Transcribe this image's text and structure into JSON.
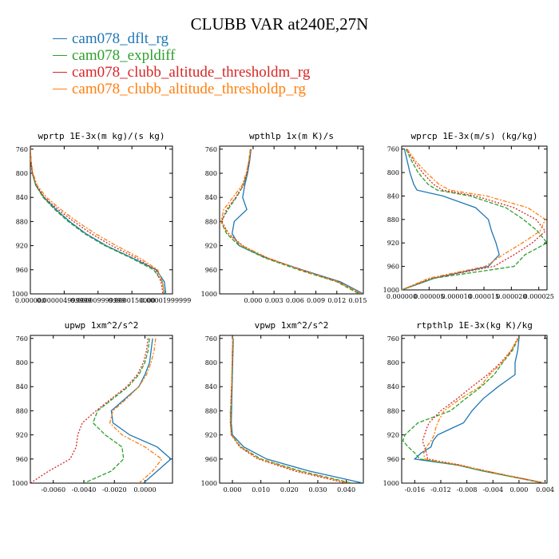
{
  "title": "CLUBB VAR at240E,27N",
  "legend": [
    {
      "name": "cam078_dflt_rg",
      "color": "#1f77b4"
    },
    {
      "name": "cam078_expldiff",
      "color": "#2ca02c"
    },
    {
      "name": "cam078_clubb_altitude_thresholdm_rg",
      "color": "#d62728"
    },
    {
      "name": "cam078_clubb_altitude_thresholdp_rg",
      "color": "#ff7f0e"
    }
  ],
  "chart_data": [
    {
      "type": "line",
      "title": "wprtp  1E-3x(m kg)/(s kg)",
      "xlim": [
        0,
        2.1e-05
      ],
      "ylim": [
        1000,
        755
      ],
      "xticks": [
        0,
        5e-06,
        1e-05,
        1.5e-05,
        2e-05
      ],
      "xtick_labels": [
        "0.000000",
        "0.000004999999",
        "0.000009999999",
        "0.0000150000",
        "0.00001999999"
      ],
      "yticks": [
        760,
        800,
        840,
        880,
        920,
        960,
        1000
      ],
      "y": [
        760,
        780,
        800,
        820,
        840,
        860,
        880,
        900,
        920,
        940,
        960,
        980,
        1000
      ],
      "series": [
        {
          "name": "cam078_dflt_rg",
          "x": [
            0,
            1e-07,
            3e-07,
            8e-07,
            2e-06,
            3.8e-06,
            5.8e-06,
            8.2e-06,
            1.12e-05,
            1.5e-05,
            1.86e-05,
            1.98e-05,
            2e-05
          ]
        },
        {
          "name": "cam078_expldiff",
          "x": [
            0,
            1e-07,
            3e-07,
            8e-07,
            1.9e-06,
            3.6e-06,
            5.6e-06,
            8e-06,
            1.1e-05,
            1.48e-05,
            1.82e-05,
            1.95e-05,
            1.98e-05
          ]
        },
        {
          "name": "cam078_clubb_altitude_thresholdm_rg",
          "x": [
            0,
            1e-07,
            3e-07,
            9e-07,
            2.1e-06,
            4.1e-06,
            6.4e-06,
            9e-06,
            1.2e-05,
            1.56e-05,
            1.85e-05,
            1.93e-05,
            1.96e-05
          ]
        },
        {
          "name": "cam078_clubb_altitude_thresholdp_rg",
          "x": [
            0,
            1e-07,
            4e-07,
            1e-06,
            2.4e-06,
            4.5e-06,
            6.9e-06,
            9.6e-06,
            1.27e-05,
            1.61e-05,
            1.88e-05,
            1.95e-05,
            1.98e-05
          ]
        }
      ]
    },
    {
      "type": "line",
      "title": "wpthlp  1x(m K)/s",
      "xlim": [
        -0.0048,
        0.0158
      ],
      "ylim": [
        1000,
        755
      ],
      "xticks": [
        0,
        0.003,
        0.006,
        0.009,
        0.012,
        0.015
      ],
      "xtick_labels": [
        "0.000",
        "0.003",
        "0.006",
        "0.009",
        "0.012",
        "0.015"
      ],
      "yticks": [
        760,
        800,
        840,
        880,
        920,
        960,
        1000
      ],
      "y": [
        760,
        780,
        800,
        820,
        840,
        860,
        880,
        900,
        920,
        940,
        960,
        980,
        1000
      ],
      "series": [
        {
          "name": "cam078_dflt_rg",
          "x": [
            -0.0003,
            -0.0005,
            -0.0008,
            -0.0012,
            -0.0015,
            -0.0009,
            -0.0027,
            -0.003,
            -0.002,
            0.0018,
            0.007,
            0.0125,
            0.0158
          ]
        },
        {
          "name": "cam078_expldiff",
          "x": [
            -0.0004,
            -0.0006,
            -0.0009,
            -0.0014,
            -0.0024,
            -0.0036,
            -0.0046,
            -0.0038,
            -0.002,
            0.0016,
            0.0065,
            0.012,
            0.0152
          ]
        },
        {
          "name": "cam078_clubb_altitude_thresholdm_rg",
          "x": [
            -0.0003,
            -0.0006,
            -0.0009,
            -0.0014,
            -0.0025,
            -0.0038,
            -0.0045,
            -0.0035,
            -0.0015,
            0.002,
            0.0068,
            0.0122,
            0.0155
          ]
        },
        {
          "name": "cam078_clubb_altitude_thresholdp_rg",
          "x": [
            -0.0004,
            -0.0006,
            -0.001,
            -0.0016,
            -0.0029,
            -0.0042,
            -0.0046,
            -0.0036,
            -0.0016,
            0.002,
            0.0068,
            0.0122,
            0.0156
          ]
        }
      ]
    },
    {
      "type": "line",
      "title": "wprcp  1E-3x(m/s) (kg/kg)",
      "xlim": [
        0,
        2.65e-05
      ],
      "ylim": [
        1000,
        755
      ],
      "xticks": [
        0,
        5e-06,
        1e-05,
        1.5e-05,
        2e-05,
        2.5e-05
      ],
      "xtick_labels": [
        "0.000000",
        "0.000005",
        "0.000010",
        "0.000015",
        "0.000020",
        "0.000025"
      ],
      "yticks": [
        760,
        800,
        840,
        880,
        920,
        960,
        1000
      ],
      "y": [
        760,
        780,
        800,
        820,
        830,
        840,
        860,
        880,
        900,
        920,
        940,
        960,
        980,
        1000
      ],
      "series": [
        {
          "name": "cam078_dflt_rg",
          "x": [
            5e-07,
            1e-06,
            1.5e-06,
            2.2e-06,
            2.8e-06,
            7.5e-06,
            1.35e-05,
            1.58e-05,
            1.64e-05,
            1.72e-05,
            1.78e-05,
            1.58e-05,
            6e-06,
            0
          ]
        },
        {
          "name": "cam078_expldiff",
          "x": [
            8e-07,
            1.8e-06,
            3e-06,
            4.8e-06,
            6.5e-06,
            1.25e-05,
            1.9e-05,
            2.22e-05,
            2.48e-05,
            2.65e-05,
            2.25e-05,
            2.05e-05,
            6e-06,
            0
          ]
        },
        {
          "name": "cam078_clubb_altitude_thresholdm_rg",
          "x": [
            9e-07,
            2.2e-06,
            3.8e-06,
            5.8e-06,
            7.5e-06,
            1.35e-05,
            2.05e-05,
            2.45e-05,
            2.62e-05,
            2.38e-05,
            2.05e-05,
            1.68e-05,
            5.5e-06,
            0
          ]
        },
        {
          "name": "cam078_clubb_altitude_thresholdp_rg",
          "x": [
            1e-06,
            2.5e-06,
            4.5e-06,
            6.8e-06,
            8.8e-06,
            1.55e-05,
            2.3e-05,
            2.62e-05,
            2.52e-05,
            2.2e-05,
            1.85e-05,
            1.52e-05,
            5e-06,
            0
          ]
        }
      ]
    },
    {
      "type": "line",
      "title": "upwp  1xm^2/s^2",
      "xlim": [
        -0.0075,
        0.0018
      ],
      "ylim": [
        1000,
        755
      ],
      "xticks": [
        -0.006,
        -0.004,
        -0.002,
        0
      ],
      "xtick_labels": [
        "-0.0060",
        "-0.0040",
        "-0.0020",
        "0.0000"
      ],
      "yticks": [
        760,
        800,
        840,
        880,
        920,
        960,
        1000
      ],
      "y": [
        760,
        780,
        800,
        820,
        840,
        860,
        880,
        900,
        920,
        940,
        960,
        980,
        1000
      ],
      "series": [
        {
          "name": "cam078_dflt_rg",
          "x": [
            0.0005,
            0.0004,
            0.0003,
            0,
            -0.0004,
            -0.0013,
            -0.0022,
            -0.0021,
            -0.001,
            0.0008,
            0.0017,
            0.0008,
            -0.0001
          ]
        },
        {
          "name": "cam078_expldiff",
          "x": [
            0.0003,
            0.0002,
            0,
            -0.0004,
            -0.0011,
            -0.0021,
            -0.0031,
            -0.0034,
            -0.0026,
            -0.0015,
            -0.0014,
            -0.0022,
            -0.004
          ]
        },
        {
          "name": "cam078_clubb_altitude_thresholdm_rg",
          "x": [
            0.0002,
            0.0001,
            -0.0001,
            -0.0005,
            -0.0012,
            -0.0022,
            -0.0032,
            -0.0041,
            -0.0044,
            -0.0045,
            -0.0049,
            -0.0063,
            -0.0075
          ]
        },
        {
          "name": "cam078_clubb_altitude_thresholdp_rg",
          "x": [
            0.0007,
            0.0006,
            0.0004,
            0.0001,
            -0.0004,
            -0.0012,
            -0.0021,
            -0.0023,
            -0.0015,
            0,
            0.0011,
            0.0005,
            -0.0004
          ]
        }
      ]
    },
    {
      "type": "line",
      "title": "vpwp  1xm^2/s^2",
      "xlim": [
        -0.0045,
        0.046
      ],
      "ylim": [
        1000,
        755
      ],
      "xticks": [
        0,
        0.01,
        0.02,
        0.03,
        0.04
      ],
      "xtick_labels": [
        "0.000",
        "0.010",
        "0.020",
        "0.030",
        "0.040"
      ],
      "yticks": [
        760,
        800,
        840,
        880,
        920,
        960,
        1000
      ],
      "y": [
        760,
        780,
        800,
        820,
        840,
        860,
        880,
        900,
        920,
        940,
        960,
        980,
        1000
      ],
      "series": [
        {
          "name": "cam078_dflt_rg",
          "x": [
            0.0003,
            0.0002,
            0.0001,
            0,
            -0.0001,
            -0.0002,
            -0.0003,
            -0.0004,
            0,
            0.004,
            0.012,
            0.027,
            0.046
          ]
        },
        {
          "name": "cam078_expldiff",
          "x": [
            0.0002,
            0.0001,
            0,
            -0.0001,
            -0.0002,
            -0.0004,
            -0.0006,
            -0.0006,
            -0.0003,
            0.003,
            0.01,
            0.024,
            0.042
          ]
        },
        {
          "name": "cam078_clubb_altitude_thresholdm_rg",
          "x": [
            0.0001,
            0,
            -0.0001,
            -0.0002,
            -0.0003,
            -0.0005,
            -0.0007,
            -0.0007,
            -0.0004,
            0.0025,
            0.009,
            0.022,
            0.04
          ]
        },
        {
          "name": "cam078_clubb_altitude_thresholdp_rg",
          "x": [
            0.0001,
            0,
            -0.0001,
            -0.0002,
            -0.0003,
            -0.0005,
            -0.0007,
            -0.0007,
            -0.0004,
            0.0028,
            0.0095,
            0.023,
            0.041
          ]
        }
      ]
    },
    {
      "type": "line",
      "title": "rtpthlp  1E-3x(kg K)/kg",
      "xlim": [
        -0.018,
        0.0043
      ],
      "ylim": [
        1000,
        755
      ],
      "xticks": [
        -0.016,
        -0.012,
        -0.008,
        -0.004,
        0,
        0.004
      ],
      "xtick_labels": [
        "-0.016",
        "-0.012",
        "-0.008",
        "-0.004",
        "0.000",
        "0.004"
      ],
      "yticks": [
        760,
        800,
        840,
        880,
        920,
        960,
        1000
      ],
      "y": [
        760,
        780,
        800,
        820,
        840,
        860,
        880,
        900,
        910,
        920,
        930,
        940,
        950,
        960,
        970,
        980,
        1000
      ],
      "series": [
        {
          "name": "cam078_dflt_rg",
          "x": [
            0,
            -0.0002,
            -0.0006,
            -0.0006,
            -0.0032,
            -0.0055,
            -0.0072,
            -0.0085,
            -0.0105,
            -0.0125,
            -0.0132,
            -0.0135,
            -0.015,
            -0.016,
            -0.0095,
            -0.0055,
            0.004
          ]
        },
        {
          "name": "cam078_expldiff",
          "x": [
            -0.0001,
            -0.001,
            -0.0025,
            -0.0038,
            -0.0058,
            -0.0082,
            -0.0105,
            -0.0155,
            -0.0165,
            -0.0175,
            -0.0178,
            -0.017,
            -0.016,
            -0.0152,
            -0.0095,
            -0.0055,
            0.0038
          ]
        },
        {
          "name": "cam078_clubb_altitude_thresholdm_rg",
          "x": [
            -0.0002,
            -0.0012,
            -0.0028,
            -0.0048,
            -0.0072,
            -0.0095,
            -0.012,
            -0.0138,
            -0.0142,
            -0.0145,
            -0.0148,
            -0.0145,
            -0.0142,
            -0.014,
            -0.009,
            -0.005,
            0.004
          ]
        },
        {
          "name": "cam078_clubb_altitude_thresholdp_rg",
          "x": [
            -0.0001,
            -0.0012,
            -0.0026,
            -0.0045,
            -0.006,
            -0.009,
            -0.0115,
            -0.0125,
            -0.0128,
            -0.013,
            -0.0135,
            -0.0142,
            -0.0146,
            -0.0145,
            -0.0092,
            -0.005,
            0.0041
          ]
        }
      ]
    }
  ]
}
